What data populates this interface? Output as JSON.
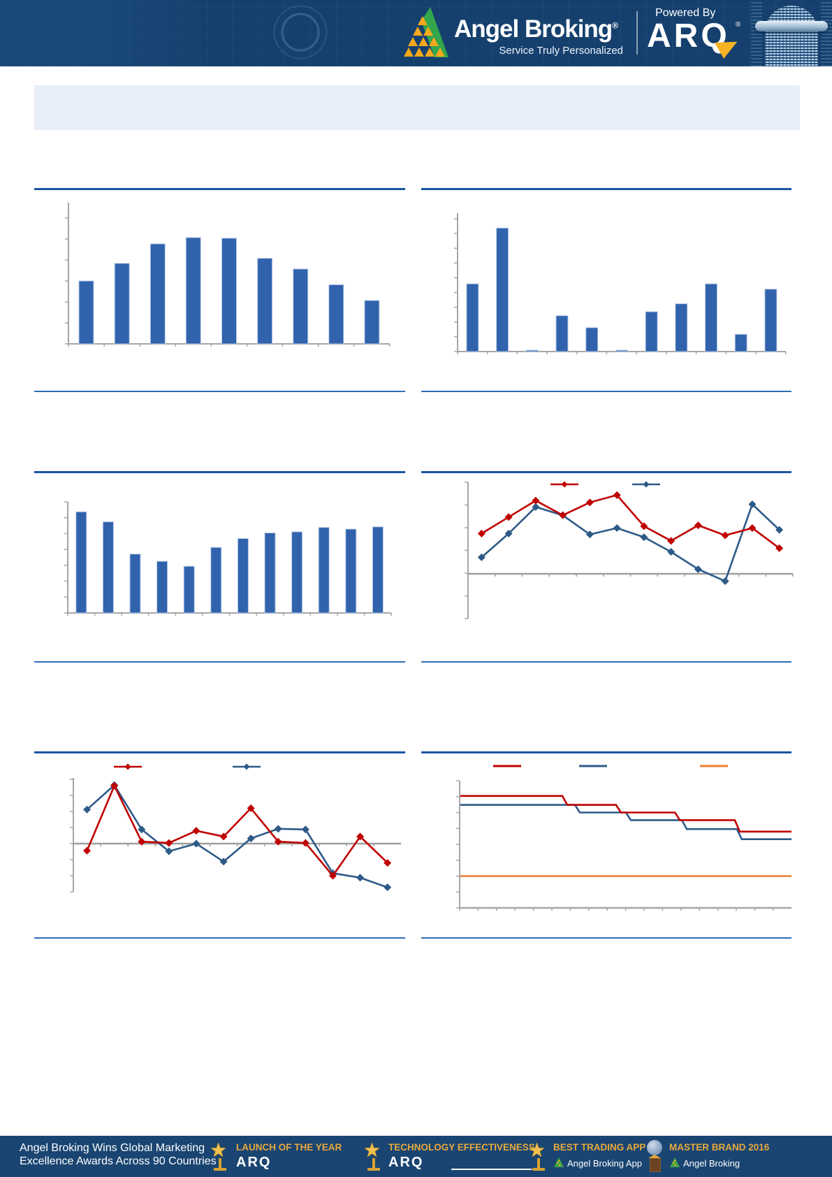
{
  "header": {
    "brand": "Angel Broking",
    "brand_reg": "®",
    "tagline": "Service Truly Personalized",
    "powered_by": "Powered By",
    "product": "ARQ",
    "product_reg": "®"
  },
  "colors": {
    "header_navy": "#15406e",
    "footer_navy": "#1a4572",
    "banner_bg": "#e9eff8",
    "bar_blue": "#3163ad",
    "bar_edge": "#b6c9e6",
    "line_red": "#c00000",
    "line_blue": "#2d5a88",
    "line_orange": "#ed7d31",
    "axis_gray": "#a6a6a6",
    "zero_gray": "#9f9f9f",
    "rule_thick": "#1b55a5",
    "rule_thin": "#2e6cb5",
    "gold": "#e8a93c"
  },
  "chart_data": [
    {
      "panel": "top-left",
      "type": "bar",
      "bar_color": "#3163ad",
      "values": [
        50,
        64,
        79.5,
        84.5,
        84,
        68,
        59.5,
        47,
        34.5
      ],
      "ylim": [
        0,
        100
      ],
      "ytick_count": 7,
      "grid": false,
      "legend_position": "none"
    },
    {
      "panel": "top-right",
      "type": "bar",
      "bar_color": "#3163ad",
      "values": [
        51,
        93,
        1,
        27,
        18,
        1,
        30,
        36,
        51,
        13,
        47
      ],
      "ylim": [
        0,
        100
      ],
      "ytick_count": 10,
      "grid": false,
      "legend_position": "none"
    },
    {
      "panel": "middle-left",
      "type": "bar",
      "bar_color": "#3163ad",
      "values": [
        91,
        82,
        53,
        46.5,
        42,
        59,
        67,
        72,
        73,
        77,
        75.5,
        77.5
      ],
      "ylim": [
        0,
        100
      ],
      "ytick_count": 8,
      "grid": false,
      "legend_position": "none"
    },
    {
      "panel": "middle-right",
      "type": "line",
      "marker": "diamond",
      "series": [
        {
          "name": "series-red",
          "color": "#c00000",
          "values": [
            44,
            62,
            80,
            64,
            78,
            86,
            52,
            36,
            53,
            42,
            50,
            28
          ]
        },
        {
          "name": "series-blue",
          "color": "#2d5a88",
          "values": [
            18,
            44,
            73,
            64,
            43,
            50,
            40,
            24,
            5,
            -8,
            76,
            48
          ]
        }
      ],
      "ylim": [
        -49,
        100
      ],
      "ytick_count": 7,
      "grid": false,
      "legend_position": "top"
    },
    {
      "panel": "bottom-left",
      "type": "line",
      "marker": "diamond",
      "series": [
        {
          "name": "series-red",
          "color": "#c00000",
          "values": [
            -11,
            90,
            3,
            1,
            20,
            11,
            55,
            3,
            1,
            -50,
            11,
            -30
          ]
        },
        {
          "name": "series-blue",
          "color": "#2d5a88",
          "values": [
            53,
            91,
            22,
            -12,
            0,
            -28,
            8,
            23,
            22,
            -46,
            -53,
            -68
          ]
        }
      ],
      "ylim": [
        -75,
        100
      ],
      "ytick_count": 8,
      "grid": false,
      "legend_position": "top"
    },
    {
      "panel": "bottom-right",
      "type": "step-line",
      "series": [
        {
          "name": "series-red",
          "color": "#c00000",
          "levels": [
            88,
            81,
            75,
            69,
            60
          ],
          "breaks_pct": [
            30.8,
            47,
            64.8,
            82.9
          ]
        },
        {
          "name": "series-blue",
          "color": "#2d5a88",
          "levels": [
            81,
            75,
            69,
            62,
            54
          ],
          "breaks_pct": [
            34.6,
            50,
            66.9,
            83.5
          ]
        },
        {
          "name": "series-orange",
          "color": "#ed7d31",
          "constant": 25
        }
      ],
      "ylim": [
        0,
        100
      ],
      "ytick_count": 9,
      "grid": false,
      "legend_position": "top"
    }
  ],
  "footer": {
    "headline_line1": "Angel Broking Wins Global Marketing",
    "headline_line2": "Excellence Awards Across 90 Countries",
    "awards": [
      {
        "title": "LAUNCH OF THE YEAR",
        "subtitle": "ARQ",
        "icon": "star-trophy"
      },
      {
        "title": "TECHNOLOGY EFFECTIVENESS",
        "subtitle": "ARQ",
        "icon": "star-trophy"
      },
      {
        "title": "BEST TRADING APP",
        "subtitle": "Angel Broking App",
        "icon": "star-trophy"
      },
      {
        "title": "MASTER BRAND 2016",
        "subtitle": "Angel Broking",
        "icon": "globe-trophy"
      }
    ]
  }
}
